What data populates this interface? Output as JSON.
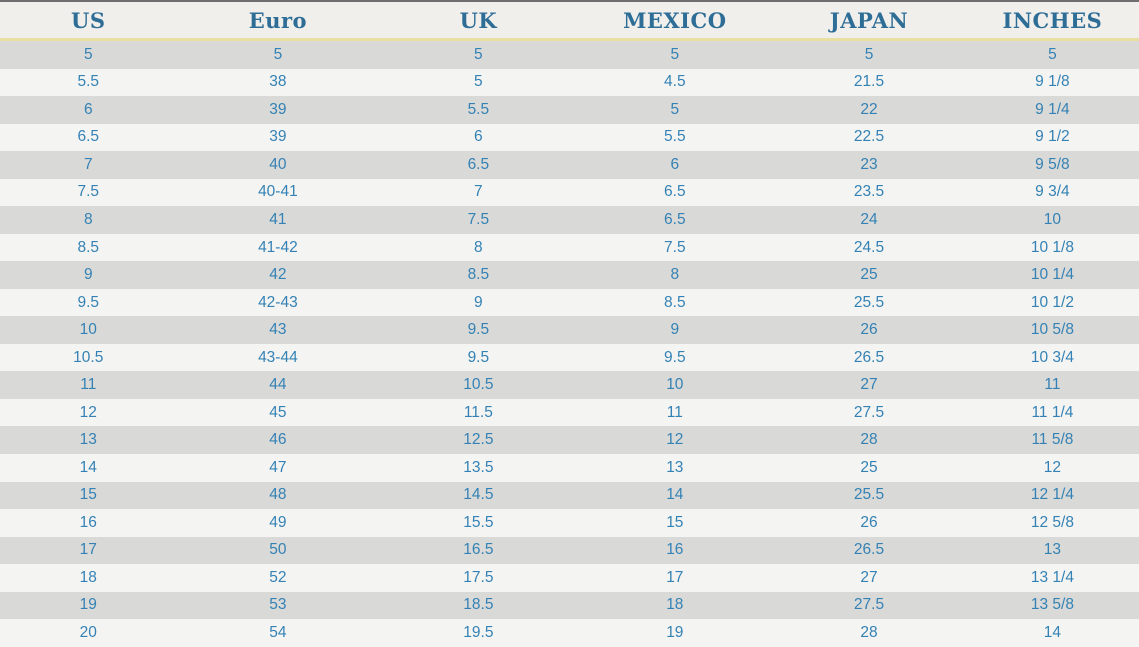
{
  "chart_data": {
    "type": "table",
    "columns": [
      "US",
      "Euro",
      "UK",
      "MEXICO",
      "JAPAN",
      "INCHES"
    ],
    "rows": [
      [
        "5",
        "5",
        "5",
        "5",
        "5",
        "5"
      ],
      [
        "5.5",
        "38",
        "5",
        "4.5",
        "21.5",
        "9 1/8"
      ],
      [
        "6",
        "39",
        "5.5",
        "5",
        "22",
        "9 1/4"
      ],
      [
        "6.5",
        "39",
        "6",
        "5.5",
        "22.5",
        "9 1/2"
      ],
      [
        "7",
        "40",
        "6.5",
        "6",
        "23",
        "9 5/8"
      ],
      [
        "7.5",
        "40-41",
        "7",
        "6.5",
        "23.5",
        "9 3/4"
      ],
      [
        "8",
        "41",
        "7.5",
        "6.5",
        "24",
        "10"
      ],
      [
        "8.5",
        "41-42",
        "8",
        "7.5",
        "24.5",
        "10 1/8"
      ],
      [
        "9",
        "42",
        "8.5",
        "8",
        "25",
        "10 1/4"
      ],
      [
        "9.5",
        "42-43",
        "9",
        "8.5",
        "25.5",
        "10 1/2"
      ],
      [
        "10",
        "43",
        "9.5",
        "9",
        "26",
        "10 5/8"
      ],
      [
        "10.5",
        "43-44",
        "9.5",
        "9.5",
        "26.5",
        "10 3/4"
      ],
      [
        "11",
        "44",
        "10.5",
        "10",
        "27",
        "11"
      ],
      [
        "12",
        "45",
        "11.5",
        "11",
        "27.5",
        "11 1/4"
      ],
      [
        "13",
        "46",
        "12.5",
        "12",
        "28",
        "11 5/8"
      ],
      [
        "14",
        "47",
        "13.5",
        "13",
        "25",
        "12"
      ],
      [
        "15",
        "48",
        "14.5",
        "14",
        "25.5",
        "12 1/4"
      ],
      [
        "16",
        "49",
        "15.5",
        "15",
        "26",
        "12 5/8"
      ],
      [
        "17",
        "50",
        "16.5",
        "16",
        "26.5",
        "13"
      ],
      [
        "18",
        "52",
        "17.5",
        "17",
        "27",
        "13 1/4"
      ],
      [
        "19",
        "53",
        "18.5",
        "18",
        "27.5",
        "13 5/8"
      ],
      [
        "20",
        "54",
        "19.5",
        "19",
        "28",
        "14"
      ]
    ]
  },
  "colors": {
    "header_text": "#2e6d96",
    "header_bg": "#f0efec",
    "row_odd_bg": "#d9d9d7",
    "row_even_bg": "#f4f4f2",
    "cell_text": "#3482b5",
    "header_top_border": "#6f6f6f",
    "header_bottom_border": "#e9dfa0"
  }
}
